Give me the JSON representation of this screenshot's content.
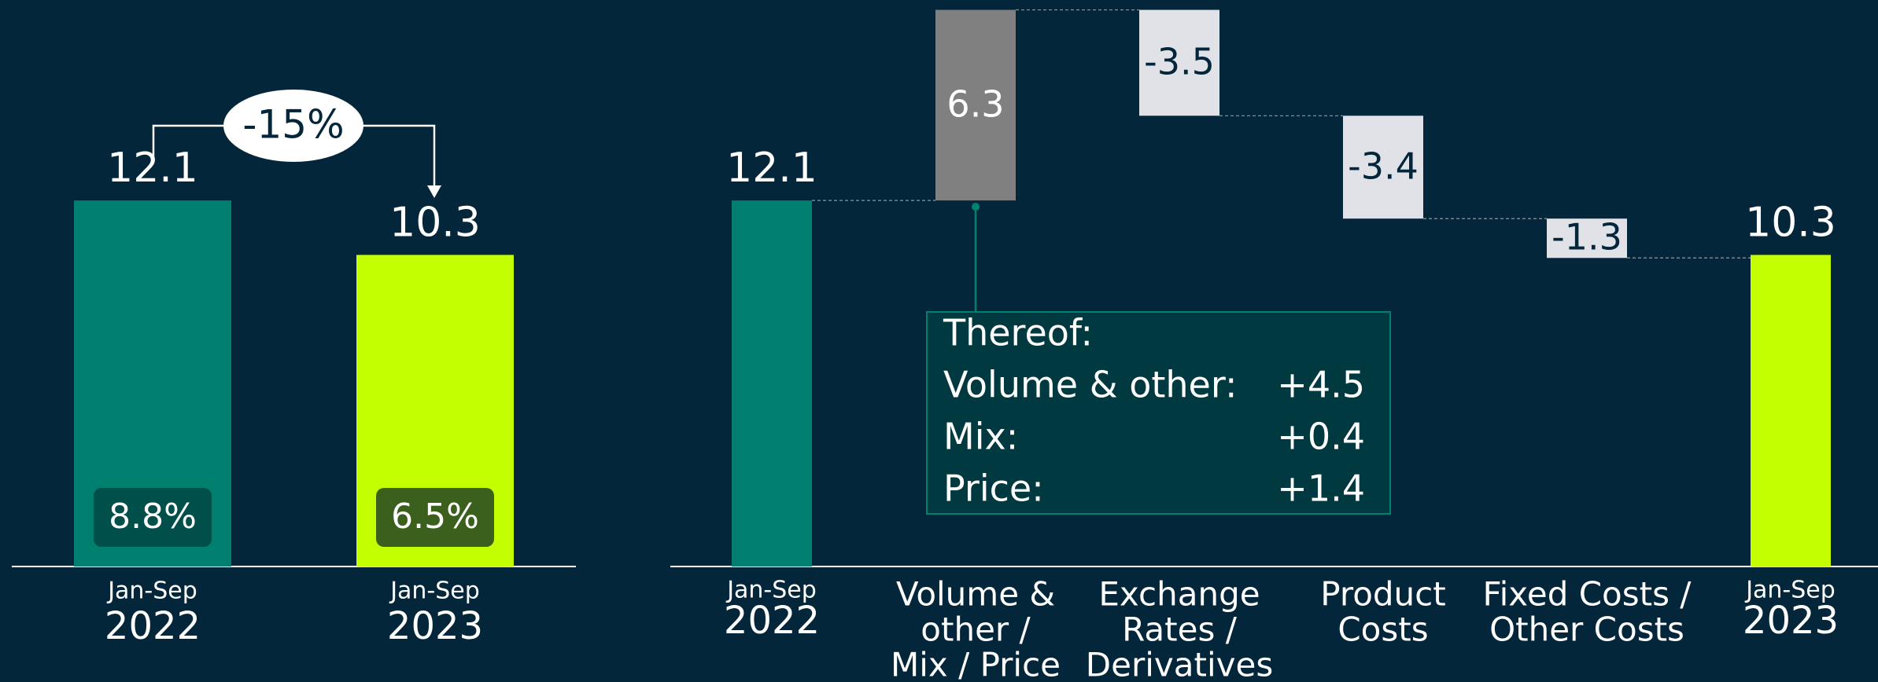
{
  "chart_data": [
    {
      "type": "bar",
      "categories": [
        [
          "Jan-Sep",
          "2022"
        ],
        [
          "Jan-Sep",
          "2023"
        ]
      ],
      "values": [
        12.1,
        10.3
      ],
      "colors": [
        "#007e6e",
        "#c3ff00"
      ],
      "margins": [
        8.8,
        6.5
      ],
      "margin_labels": [
        "8.8%",
        "6.5%"
      ],
      "margin_colors": [
        "#004f4a",
        "#3b5f1c"
      ],
      "change": -15,
      "change_label": "-15%",
      "ylim": [
        0,
        18.7
      ]
    },
    {
      "type": "waterfall",
      "categories": [
        [
          "Jan-Sep",
          "2022"
        ],
        [
          "Volume &",
          "other /",
          "Mix / Price"
        ],
        [
          "Exchange",
          "Rates /",
          "Derivatives"
        ],
        [
          "Product",
          "Costs"
        ],
        [
          "Fixed Costs /",
          "Other Costs"
        ],
        [
          "Jan-Sep",
          "2023"
        ]
      ],
      "values": [
        12.1,
        6.3,
        -3.5,
        -3.4,
        -1.3,
        10.3
      ],
      "measure": [
        "absolute",
        "relative",
        "relative",
        "relative",
        "relative",
        "absolute"
      ],
      "colors": {
        "start": "#007e6e",
        "end": "#c3ff00",
        "increase": "#808080",
        "decrease": "#e1e2e7"
      },
      "ylim": [
        0,
        18.7
      ],
      "breakdown": {
        "title": "Thereof:",
        "items": [
          {
            "label": "Volume & other:",
            "value": 4.5,
            "value_label": "+4.5"
          },
          {
            "label": "Mix:",
            "value": 0.4,
            "value_label": "+0.4"
          },
          {
            "label": "Price:",
            "value": 1.4,
            "value_label": "+1.4"
          }
        ]
      }
    }
  ]
}
